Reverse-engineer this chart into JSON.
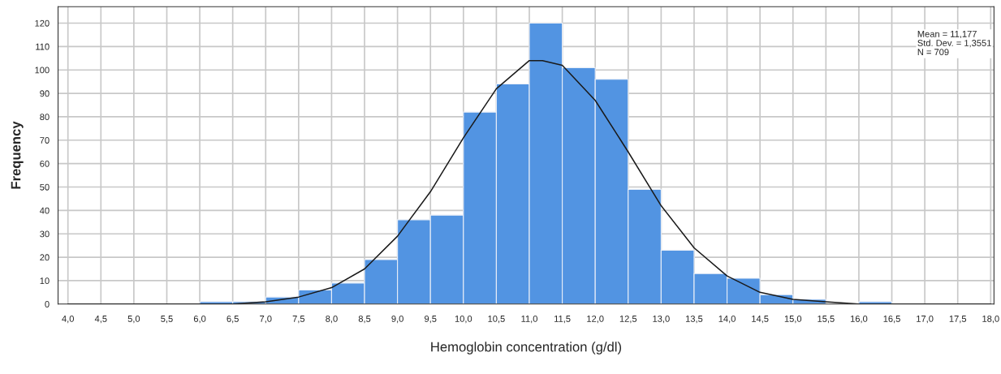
{
  "chart_data": {
    "type": "histogram",
    "xlabel": "Hemoglobin concentration (g/dl)",
    "ylabel": "Frequency",
    "bins": [
      6.0,
      6.5,
      7.0,
      7.5,
      8.0,
      8.5,
      9.0,
      9.5,
      10.0,
      10.5,
      11.0,
      11.5,
      12.0,
      12.5,
      13.0,
      13.5,
      14.0,
      14.5,
      15.0,
      15.5,
      16.0,
      16.5
    ],
    "values": [
      1,
      1,
      3,
      6,
      9,
      19,
      36,
      38,
      82,
      94,
      120,
      101,
      96,
      49,
      23,
      13,
      11,
      4,
      2,
      0,
      1
    ],
    "color": "#5294e2",
    "series": [
      {
        "type": "line",
        "color": "#1a1a1a",
        "x": [
          4.0,
          5.0,
          6.0,
          6.5,
          7.0,
          7.5,
          8.0,
          8.5,
          9.0,
          9.5,
          10.0,
          10.5,
          11.0,
          11.2,
          11.5,
          12.0,
          12.5,
          13.0,
          13.5,
          14.0,
          14.5,
          15.0,
          15.5,
          16.0,
          17.0,
          18.0
        ],
        "values": [
          0,
          0,
          0,
          0,
          1,
          3,
          7,
          15,
          29,
          48,
          71,
          92,
          104,
          104,
          102,
          87,
          65,
          42,
          24,
          12,
          5,
          2,
          1,
          0,
          0,
          0
        ]
      }
    ],
    "annotations": [
      "Mean = 11,177\nStd. Dev. = 1,3551\nN = 709"
    ],
    "xlim": [
      3.85,
      18.05
    ],
    "ylim": [
      0,
      127
    ],
    "xticks": [
      {
        "value": 4.0,
        "label": "4,0"
      },
      {
        "value": 4.5,
        "label": "4,5"
      },
      {
        "value": 5.0,
        "label": "5,0"
      },
      {
        "value": 5.5,
        "label": "5,5"
      },
      {
        "value": 6.0,
        "label": "6,0"
      },
      {
        "value": 6.5,
        "label": "6,5"
      },
      {
        "value": 7.0,
        "label": "7,0"
      },
      {
        "value": 7.5,
        "label": "7,5"
      },
      {
        "value": 8.0,
        "label": "8,0"
      },
      {
        "value": 8.5,
        "label": "8,5"
      },
      {
        "value": 9.0,
        "label": "9,0"
      },
      {
        "value": 9.5,
        "label": "9,5"
      },
      {
        "value": 10.0,
        "label": "10,0"
      },
      {
        "value": 10.5,
        "label": "10,5"
      },
      {
        "value": 11.0,
        "label": "11,0"
      },
      {
        "value": 11.5,
        "label": "11,5"
      },
      {
        "value": 12.0,
        "label": "12,0"
      },
      {
        "value": 12.5,
        "label": "12,5"
      },
      {
        "value": 13.0,
        "label": "13,0"
      },
      {
        "value": 13.5,
        "label": "13,5"
      },
      {
        "value": 14.0,
        "label": "14,0"
      },
      {
        "value": 14.5,
        "label": "14,5"
      },
      {
        "value": 15.0,
        "label": "15,0"
      },
      {
        "value": 15.5,
        "label": "15,5"
      },
      {
        "value": 16.0,
        "label": "16,0"
      },
      {
        "value": 16.5,
        "label": "16,5"
      },
      {
        "value": 17.0,
        "label": "17,0"
      },
      {
        "value": 17.5,
        "label": "17,5"
      },
      {
        "value": 18.0,
        "label": "18,0"
      }
    ],
    "yticks": [
      0,
      10,
      20,
      30,
      40,
      50,
      60,
      70,
      80,
      90,
      100,
      110,
      120
    ],
    "grid": true,
    "legend": false
  }
}
